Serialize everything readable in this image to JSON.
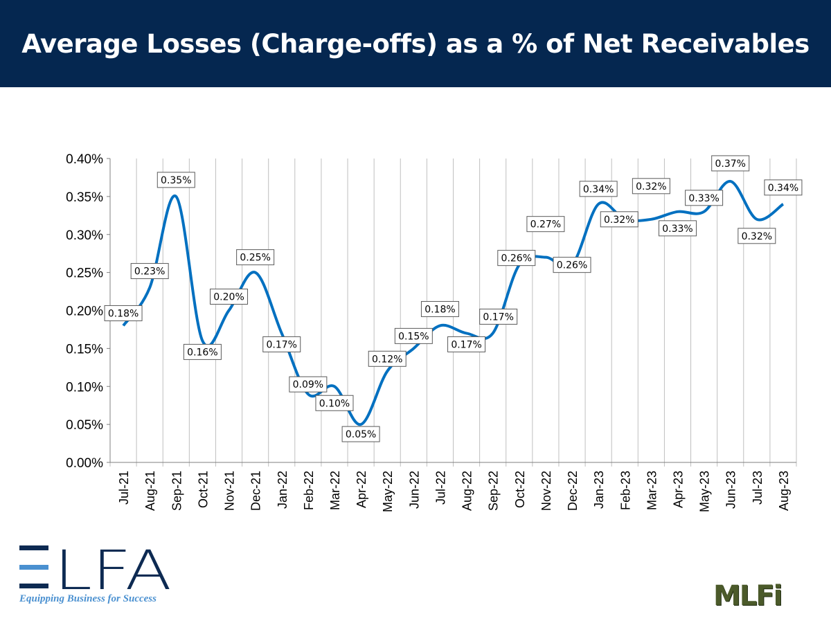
{
  "header": {
    "title": "Average Losses (Charge-offs) as a % of Net Receivables"
  },
  "logos": {
    "elfa": "ELFA",
    "elfa_tagline": "Equipping Business for Success",
    "mlfi": "MLFi"
  },
  "colors": {
    "header_bg": "#052750",
    "line": "#0070c0"
  },
  "chart_data": {
    "type": "line",
    "title": "Average Losses (Charge-offs) as a % of Net Receivables",
    "xlabel": "",
    "ylabel": "",
    "ylim": [
      0,
      0.4
    ],
    "yticks": [
      "0.00%",
      "0.05%",
      "0.10%",
      "0.15%",
      "0.20%",
      "0.25%",
      "0.30%",
      "0.35%",
      "0.40%"
    ],
    "grid": "vertical",
    "categories": [
      "Jul-21",
      "Aug-21",
      "Sep-21",
      "Oct-21",
      "Nov-21",
      "Dec-21",
      "Jan-22",
      "Feb-22",
      "Mar-22",
      "Apr-22",
      "May-22",
      "Jun-22",
      "Jul-22",
      "Aug-22",
      "Sep-22",
      "Oct-22",
      "Nov-22",
      "Dec-22",
      "Jan-23",
      "Feb-23",
      "Mar-23",
      "Apr-23",
      "May-23",
      "Jun-23",
      "Jul-23",
      "Aug-23"
    ],
    "values": [
      0.18,
      0.23,
      0.35,
      0.16,
      0.2,
      0.25,
      0.17,
      0.09,
      0.1,
      0.05,
      0.12,
      0.15,
      0.18,
      0.17,
      0.17,
      0.26,
      0.27,
      0.26,
      0.34,
      0.32,
      0.32,
      0.33,
      0.33,
      0.37,
      0.32,
      0.34
    ],
    "labels": [
      "0.18%",
      "0.23%",
      "0.35%",
      "0.16%",
      "0.20%",
      "0.25%",
      "0.17%",
      "0.09%",
      "0.10%",
      "0.05%",
      "0.12%",
      "0.15%",
      "0.18%",
      "0.17%",
      "0.17%",
      "0.26%",
      "0.27%",
      "0.26%",
      "0.34%",
      "0.32%",
      "0.32%",
      "0.33%",
      "0.33%",
      "0.37%",
      "0.32%",
      "0.34%"
    ]
  }
}
